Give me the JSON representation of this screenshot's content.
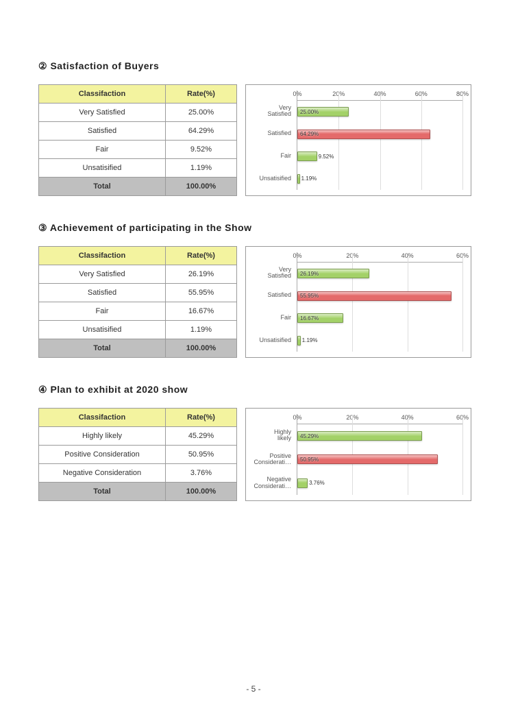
{
  "page_number": "- 5 -",
  "bar_colors": {
    "green": "#a3d168",
    "red": "#e46a6a"
  },
  "sections": [
    {
      "marker": "②",
      "title": "Satisfaction of Buyers",
      "table": {
        "headers": [
          "Classifaction",
          "Rate(%)"
        ],
        "rows": [
          {
            "label": "Very Satisfied",
            "rate": "25.00%"
          },
          {
            "label": "Satisfied",
            "rate": "64.29%"
          },
          {
            "label": "Fair",
            "rate": "9.52%"
          },
          {
            "label": "Unsatisified",
            "rate": "1.19%"
          }
        ],
        "total": {
          "label": "Total",
          "rate": "100.00%"
        }
      },
      "chart": {
        "type": "bar-horizontal",
        "xmax": 80,
        "xstep": 20,
        "bars": [
          {
            "ylabel": "Very Satisfied",
            "value": 25.0,
            "display": "25.00%",
            "color": "green"
          },
          {
            "ylabel": "Satisfied",
            "value": 64.29,
            "display": "64.29%",
            "color": "red"
          },
          {
            "ylabel": "Fair",
            "value": 9.52,
            "display": "9.52%",
            "color": "green"
          },
          {
            "ylabel": "Unsatisified",
            "value": 1.19,
            "display": "1.19%",
            "color": "green"
          }
        ]
      }
    },
    {
      "marker": "③",
      "title": "Achievement of participating in the Show",
      "table": {
        "headers": [
          "Classifaction",
          "Rate(%)"
        ],
        "rows": [
          {
            "label": "Very Satisfied",
            "rate": "26.19%"
          },
          {
            "label": "Satisfied",
            "rate": "55.95%"
          },
          {
            "label": "Fair",
            "rate": "16.67%"
          },
          {
            "label": "Unsatisified",
            "rate": "1.19%"
          }
        ],
        "total": {
          "label": "Total",
          "rate": "100.00%"
        }
      },
      "chart": {
        "type": "bar-horizontal",
        "xmax": 60,
        "xstep": 20,
        "bars": [
          {
            "ylabel": "Very Satisfied",
            "value": 26.19,
            "display": "26.19%",
            "color": "green"
          },
          {
            "ylabel": "Satisfied",
            "value": 55.95,
            "display": "55.95%",
            "color": "red"
          },
          {
            "ylabel": "Fair",
            "value": 16.67,
            "display": "16.67%",
            "color": "green"
          },
          {
            "ylabel": "Unsatisified",
            "value": 1.19,
            "display": "1.19%",
            "color": "green"
          }
        ]
      }
    },
    {
      "marker": "④",
      "title": "Plan to exhibit at 2020 show",
      "table": {
        "headers": [
          "Classifaction",
          "Rate(%)"
        ],
        "rows": [
          {
            "label": "Highly likely",
            "rate": "45.29%"
          },
          {
            "label": "Positive Consideration",
            "rate": "50.95%"
          },
          {
            "label": "Negative Consideration",
            "rate": "3.76%"
          }
        ],
        "total": {
          "label": "Total",
          "rate": "100.00%"
        }
      },
      "chart": {
        "type": "bar-horizontal",
        "xmax": 60,
        "xstep": 20,
        "bars": [
          {
            "ylabel": "Highly likely",
            "value": 45.29,
            "display": "45.29%",
            "color": "green"
          },
          {
            "ylabel": "Positive Considerati…",
            "value": 50.95,
            "display": "50.95%",
            "color": "red"
          },
          {
            "ylabel": "Negative Considerati…",
            "value": 3.76,
            "display": "3.76%",
            "color": "green"
          }
        ]
      }
    }
  ]
}
